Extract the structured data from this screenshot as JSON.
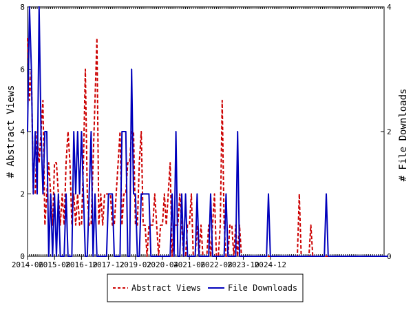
{
  "chart_data": {
    "type": "line",
    "ylabel_left": "# Abstract Views",
    "ylabel_right": "# File Downloads",
    "ylim_left": [
      0,
      8
    ],
    "ylim_right": [
      0,
      4
    ],
    "yticks_left": [
      "0",
      "2",
      "4",
      "6",
      "8"
    ],
    "yticks_right": [
      "0",
      "2",
      "4"
    ],
    "x_tick_labels": [
      "2014-06",
      "2015-08",
      "2016-10",
      "2017-12",
      "2019-02",
      "2020-04",
      "2021-06",
      "2022-08",
      "2023-10",
      "2024-12"
    ],
    "x_start": "2014-06",
    "grid": false,
    "legend_position": "bottom",
    "series": [
      {
        "name": "Abstract Views",
        "axis": "left",
        "color": "#cc0000",
        "style": "dashed",
        "values": [
          7,
          5,
          6,
          2,
          2,
          4,
          3,
          4,
          5,
          1,
          2,
          3,
          2,
          1,
          3,
          3,
          2,
          1,
          2,
          1,
          3,
          4,
          3,
          1,
          2,
          1,
          2,
          1,
          1,
          3,
          6,
          2,
          1,
          1,
          3,
          5,
          7,
          1,
          2,
          1,
          2,
          2,
          2,
          2,
          1,
          1,
          2,
          3,
          4,
          1,
          2,
          2,
          3,
          3,
          4,
          4,
          1,
          1,
          3,
          4,
          1,
          1,
          0,
          1,
          1,
          1,
          2,
          1,
          0,
          1,
          1,
          2,
          1,
          2,
          3,
          0,
          1,
          1,
          1,
          2,
          1,
          0,
          0,
          1,
          1,
          2,
          0,
          0,
          1,
          0,
          1,
          0,
          0,
          0,
          1,
          0,
          1,
          2,
          0,
          0,
          1,
          5,
          1,
          0,
          0,
          1,
          1,
          0,
          1,
          0,
          1,
          0,
          0,
          0,
          0,
          0,
          0,
          0,
          0,
          0,
          0,
          0,
          0,
          0,
          0,
          0,
          0,
          0,
          0,
          0,
          0,
          0,
          0,
          0,
          0,
          0,
          0,
          0,
          0,
          0,
          0,
          2,
          0,
          0,
          0,
          0,
          0,
          1,
          0,
          0,
          0,
          0,
          0,
          0,
          0,
          0,
          0,
          0,
          0,
          0,
          0,
          0,
          0,
          0,
          0,
          0,
          0,
          0,
          0,
          0,
          0,
          0,
          0,
          0,
          0,
          0,
          0,
          0,
          0,
          0,
          0,
          0,
          0,
          0,
          0,
          0
        ]
      },
      {
        "name": "File Downloads",
        "axis": "right",
        "color": "#0000bb",
        "style": "solid",
        "values": [
          2,
          4,
          3,
          1,
          2,
          1,
          4,
          2,
          1,
          2,
          2,
          0,
          1,
          0,
          1,
          0,
          1,
          0,
          0,
          0,
          1,
          0,
          0,
          0,
          2,
          1,
          2,
          1,
          2,
          1,
          0,
          0,
          1,
          2,
          0,
          1,
          0,
          0,
          0,
          0,
          0,
          0,
          1,
          1,
          1,
          0,
          0,
          0,
          0,
          2,
          2,
          2,
          0,
          0,
          3,
          1,
          1,
          0,
          0,
          1,
          1,
          1,
          1,
          1,
          0,
          0,
          0,
          0,
          0,
          0,
          0,
          0,
          0,
          0,
          0,
          1,
          0,
          2,
          0,
          0,
          1,
          0,
          1,
          0,
          0,
          0,
          0,
          0,
          1,
          0,
          0,
          0,
          0,
          0,
          0,
          1,
          0,
          0,
          0,
          0,
          0,
          0,
          0,
          1,
          0,
          0,
          0,
          0,
          0,
          2,
          0,
          0,
          0,
          0,
          0,
          0,
          0,
          0,
          0,
          0,
          0,
          0,
          0,
          0,
          0,
          1,
          0,
          0,
          0,
          0,
          0,
          0,
          0,
          0,
          0,
          0,
          0,
          0,
          0,
          0,
          0,
          0,
          0,
          0,
          0,
          0,
          0,
          0,
          0,
          0,
          0,
          0,
          0,
          0,
          0,
          1,
          0,
          0,
          0,
          0,
          0,
          0,
          0,
          0,
          0,
          0,
          0,
          0,
          0,
          0,
          0,
          0,
          0,
          0,
          0,
          0,
          0,
          0,
          0,
          0,
          0,
          0,
          0,
          0,
          0,
          0,
          0,
          0
        ]
      }
    ]
  }
}
